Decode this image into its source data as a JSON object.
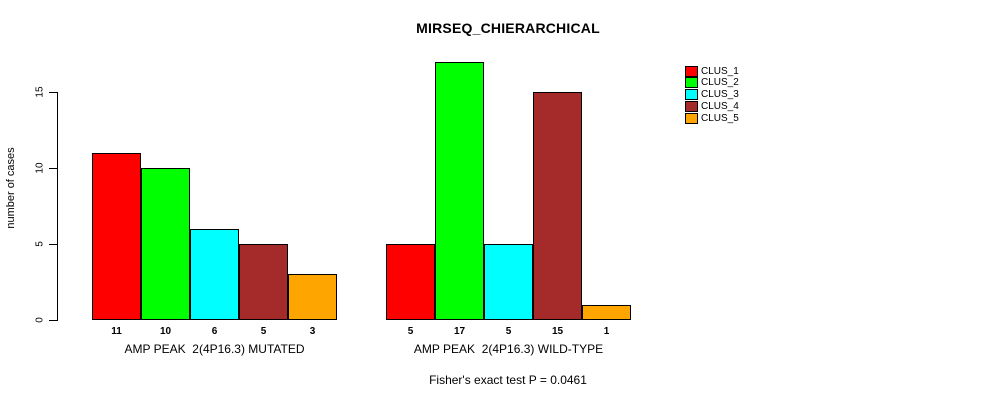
{
  "figure": {
    "title": "MIRSEQ_CHIERARCHICAL",
    "footnote": "Fisher's exact test P = 0.0461"
  },
  "chart_data": {
    "type": "bar",
    "title": "MIRSEQ_CHIERARCHICAL",
    "xlabel": "",
    "ylabel": "number of cases",
    "ylim": [
      0,
      17
    ],
    "yticks": [
      0,
      5,
      10,
      15
    ],
    "grid": false,
    "legend_position": "top-right",
    "categories": [
      "AMP PEAK  2(4P16.3) MUTATED",
      "AMP PEAK  2(4P16.3) WILD-TYPE"
    ],
    "series": [
      {
        "name": "CLUS_1",
        "color": "#FF0000",
        "values": [
          11,
          5
        ]
      },
      {
        "name": "CLUS_2",
        "color": "#00FF00",
        "values": [
          10,
          17
        ]
      },
      {
        "name": "CLUS_3",
        "color": "#00FFFF",
        "values": [
          6,
          5
        ]
      },
      {
        "name": "CLUS_4",
        "color": "#A52A2A",
        "values": [
          5,
          15
        ]
      },
      {
        "name": "CLUS_5",
        "color": "#FFA500",
        "values": [
          3,
          1
        ]
      }
    ],
    "bar_value_labels": [
      [
        11,
        10,
        6,
        5,
        3
      ],
      [
        5,
        17,
        5,
        15,
        1
      ]
    ],
    "annotation": "Fisher's exact test P = 0.0461"
  }
}
